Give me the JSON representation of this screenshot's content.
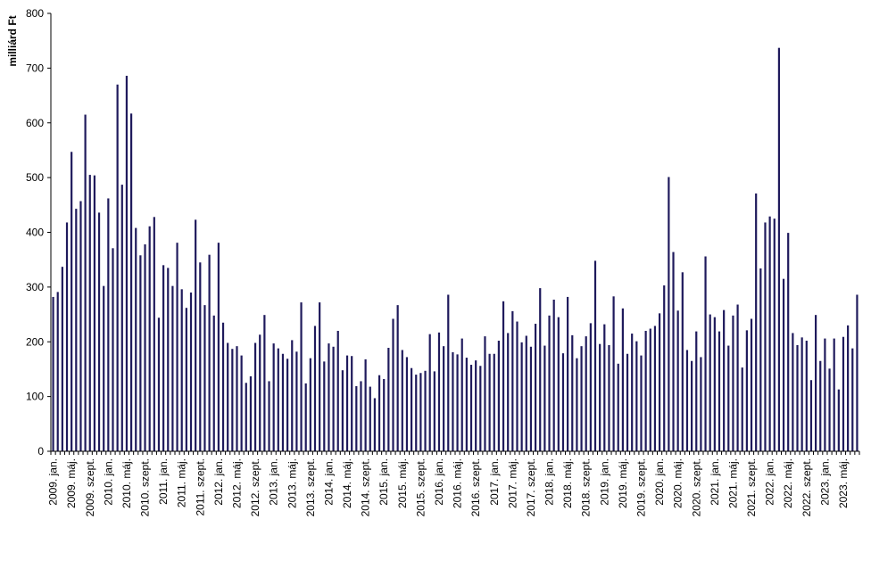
{
  "chart_data": {
    "type": "bar",
    "ylabel": "milliárd Ft",
    "ylim": [
      0,
      800
    ],
    "yticks": [
      0,
      100,
      200,
      300,
      400,
      500,
      600,
      700,
      800
    ],
    "grid": false,
    "bar_color": "#1f1a5c",
    "start": "2009-01",
    "values": [
      282,
      291,
      337,
      418,
      547,
      443,
      457,
      615,
      505,
      504,
      436,
      302,
      462,
      371,
      670,
      487,
      686,
      617,
      408,
      358,
      378,
      411,
      428,
      244,
      340,
      335,
      302,
      381,
      296,
      262,
      290,
      423,
      345,
      267,
      359,
      248,
      381,
      235,
      198,
      187,
      192,
      175,
      125,
      137,
      198,
      213,
      249,
      128,
      197,
      188,
      178,
      169,
      203,
      182,
      272,
      124,
      170,
      229,
      272,
      164,
      197,
      191,
      220,
      148,
      175,
      174,
      119,
      128,
      168,
      118,
      97,
      139,
      132,
      189,
      242,
      267,
      185,
      172,
      152,
      140,
      143,
      147,
      214,
      146,
      217,
      192,
      286,
      181,
      177,
      206,
      171,
      158,
      166,
      156,
      210,
      178,
      178,
      202,
      274,
      216,
      256,
      237,
      199,
      211,
      191,
      233,
      298,
      193,
      248,
      277,
      245,
      179,
      282,
      212,
      170,
      192,
      210,
      234,
      348,
      196,
      232,
      194,
      283,
      160,
      261,
      178,
      215,
      201,
      175,
      220,
      224,
      229,
      252,
      303,
      501,
      364,
      257,
      327,
      185,
      165,
      219,
      172,
      356,
      250,
      245,
      219,
      258,
      193,
      248,
      268,
      153,
      221,
      242,
      471,
      334,
      418,
      429,
      425,
      737,
      315,
      399,
      216,
      194,
      208,
      202,
      130,
      249,
      165,
      206,
      151,
      206,
      113,
      209,
      230,
      188,
      286
    ],
    "xtick_labels": [
      "2009. jan.",
      "2009. máj.",
      "2009. szept.",
      "2010. jan.",
      "2010. máj.",
      "2010. szept.",
      "2011. jan.",
      "2011. máj.",
      "2011. szept.",
      "2012. jan.",
      "2012. máj.",
      "2012. szept.",
      "2013. jan.",
      "2013. máj.",
      "2013. szept.",
      "2014. jan.",
      "2014. máj.",
      "2014. szept.",
      "2015. jan.",
      "2015. máj.",
      "2015. szept.",
      "2016. jan.",
      "2016. máj.",
      "2016. szept.",
      "2017. jan.",
      "2017. máj.",
      "2017. szept.",
      "2018. jan.",
      "2018. máj.",
      "2018. szept.",
      "2019. jan.",
      "2019. máj.",
      "2019. szept.",
      "2020. jan.",
      "2020. máj.",
      "2020. szept.",
      "2021. jan.",
      "2021. máj.",
      "2021. szept.",
      "2022. jan.",
      "2022. máj.",
      "2022. szept.",
      "2023. jan.",
      "2023. máj."
    ]
  }
}
